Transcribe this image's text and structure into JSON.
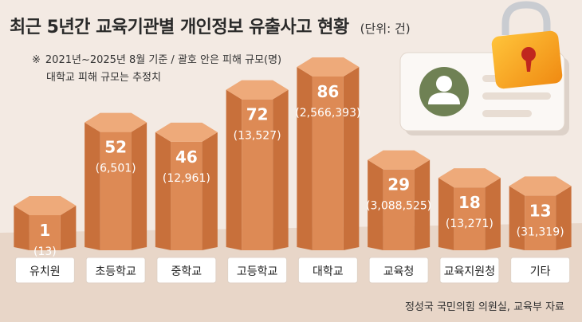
{
  "header": {
    "title": "최근 5년간 교육기관별 개인정보 유출사고 현황",
    "unit": "(단위: 건)"
  },
  "notes": {
    "mark": "※",
    "line1": "2021년~2025년 8월 기준 / 괄호 안은 피해 규모(명)",
    "line2": "대학교 피해 규모는 추정치"
  },
  "source": "정성국 국민의힘 의원실, 교육부 자료",
  "icons": [
    "profile-card-icon",
    "padlock-icon"
  ],
  "colors": {
    "background": "#f3eae3",
    "prism_front": "#dd8a55",
    "prism_side": "#c8703b",
    "prism_top": "#eeaa7a",
    "label_box": "#ffffff"
  },
  "chart_data": {
    "type": "bar",
    "title": "최근 5년간 교육기관별 개인정보 유출사고 현황",
    "unit": "(단위: 건)",
    "categories": [
      "유치원",
      "초등학교",
      "중학교",
      "고등학교",
      "대학교",
      "교육청",
      "교육지원청",
      "기타"
    ],
    "series": [
      {
        "values": [
          1,
          52,
          46,
          72,
          86,
          29,
          18,
          13
        ]
      }
    ],
    "damage_labels": [
      "(13)",
      "(6,501)",
      "(12,961)",
      "(13,527)",
      "(2,566,393)",
      "(3,088,525)",
      "(13,271)",
      "(31,319)"
    ],
    "ylim": [
      0,
      86
    ],
    "grid": false,
    "legend": "none"
  }
}
